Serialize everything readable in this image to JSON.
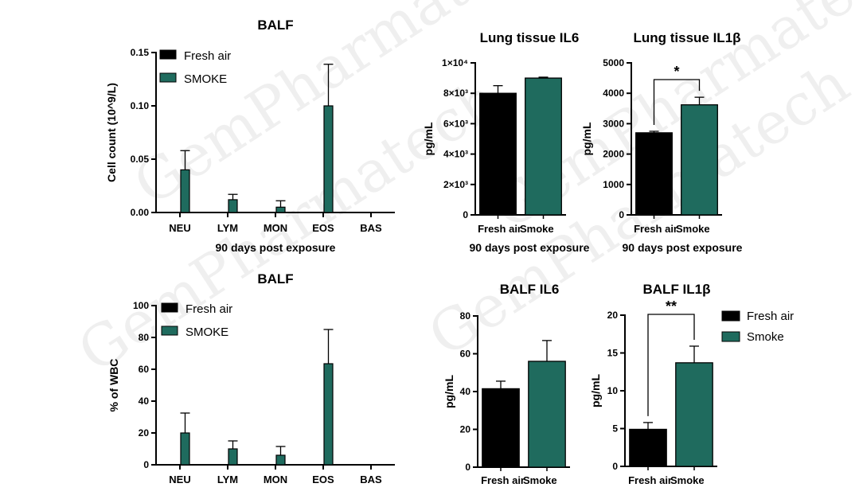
{
  "colors": {
    "fresh_air": "#000000",
    "smoke": "#1f6b5e",
    "axis": "#000000"
  },
  "watermark": {
    "text": "GemPharmatech"
  },
  "chart_data": [
    {
      "id": "balf-count",
      "type": "bar",
      "title": "BALF",
      "ylabel": "Cell count (10^9/L)",
      "xlabel": "90 days post exposure",
      "categories": [
        "NEU",
        "LYM",
        "MON",
        "EOS",
        "BAS"
      ],
      "ylim": [
        0,
        0.15
      ],
      "yticks": [
        0,
        0.05,
        0.1,
        0.15
      ],
      "ytick_labels": [
        "0.00",
        "0.05",
        "0.10",
        "0.15"
      ],
      "legend": [
        "Fresh air",
        "SMOKE"
      ],
      "legend_position": "top-left",
      "series": [
        {
          "name": "Fresh air",
          "values": [
            0,
            0,
            0,
            0,
            0
          ],
          "errors": [
            0,
            0,
            0,
            0,
            0
          ]
        },
        {
          "name": "SMOKE",
          "values": [
            0.04,
            0.012,
            0.005,
            0.1,
            0
          ],
          "errors": [
            0.018,
            0.005,
            0.006,
            0.039,
            0
          ]
        }
      ]
    },
    {
      "id": "balf-pct",
      "type": "bar",
      "title": "BALF",
      "ylabel": "% of WBC",
      "xlabel": "",
      "categories": [
        "NEU",
        "LYM",
        "MON",
        "EOS",
        "BAS"
      ],
      "ylim": [
        0,
        100
      ],
      "yticks": [
        0,
        20,
        40,
        60,
        80,
        100
      ],
      "ytick_labels": [
        "0",
        "20",
        "40",
        "60",
        "80",
        "100"
      ],
      "legend": [
        "Fresh air",
        "SMOKE"
      ],
      "legend_position": "top-left",
      "series": [
        {
          "name": "Fresh air",
          "values": [
            0,
            0,
            0,
            0,
            0
          ],
          "errors": [
            0,
            0,
            0,
            0,
            0
          ]
        },
        {
          "name": "SMOKE",
          "values": [
            20,
            10,
            6,
            63.5,
            0
          ],
          "errors": [
            12.5,
            5,
            5.5,
            21.5,
            0
          ]
        }
      ]
    },
    {
      "id": "lung-il6",
      "type": "bar",
      "title": "Lung tissue IL6",
      "ylabel": "pg/mL",
      "xlabel": "90 days post exposure",
      "categories": [
        "Fresh air",
        "Smoke"
      ],
      "ylim": [
        0,
        10000
      ],
      "yticks": [
        0,
        2000,
        4000,
        6000,
        8000,
        10000
      ],
      "ytick_labels": [
        "0",
        "2×10³",
        "4×10³",
        "6×10³",
        "8×10³",
        "1×10⁴"
      ],
      "values": [
        8000,
        9000
      ],
      "errors": [
        500,
        60
      ]
    },
    {
      "id": "lung-il1b",
      "type": "bar",
      "title": "Lung tissue IL1β",
      "ylabel": "pg/mL",
      "xlabel": "90 days post exposure",
      "categories": [
        "Fresh air",
        "Smoke"
      ],
      "ylim": [
        0,
        5000
      ],
      "yticks": [
        0,
        1000,
        2000,
        3000,
        4000,
        5000
      ],
      "ytick_labels": [
        "0",
        "1000",
        "2000",
        "3000",
        "4000",
        "5000"
      ],
      "values": [
        2700,
        3620
      ],
      "errors": [
        50,
        250
      ],
      "significance": "*"
    },
    {
      "id": "balf-il6",
      "type": "bar",
      "title": "BALF IL6",
      "ylabel": "pg/mL",
      "xlabel": "",
      "categories": [
        "Fresh air",
        "Smoke"
      ],
      "ylim": [
        0,
        80
      ],
      "yticks": [
        0,
        20,
        40,
        60,
        80
      ],
      "ytick_labels": [
        "0",
        "20",
        "40",
        "60",
        "80"
      ],
      "values": [
        41.5,
        56
      ],
      "errors": [
        4,
        11
      ]
    },
    {
      "id": "balf-il1b",
      "type": "bar",
      "title": "BALF IL1β",
      "ylabel": "pg/mL",
      "xlabel": "",
      "categories": [
        "Fresh air",
        "Smoke"
      ],
      "ylim": [
        0,
        20
      ],
      "yticks": [
        0,
        5,
        10,
        15,
        20
      ],
      "ytick_labels": [
        "0",
        "5",
        "10",
        "15",
        "20"
      ],
      "values": [
        4.9,
        13.7
      ],
      "errors": [
        0.9,
        2.2
      ],
      "significance": "**",
      "legend": [
        "Fresh air",
        "Smoke"
      ],
      "legend_position": "right"
    }
  ]
}
